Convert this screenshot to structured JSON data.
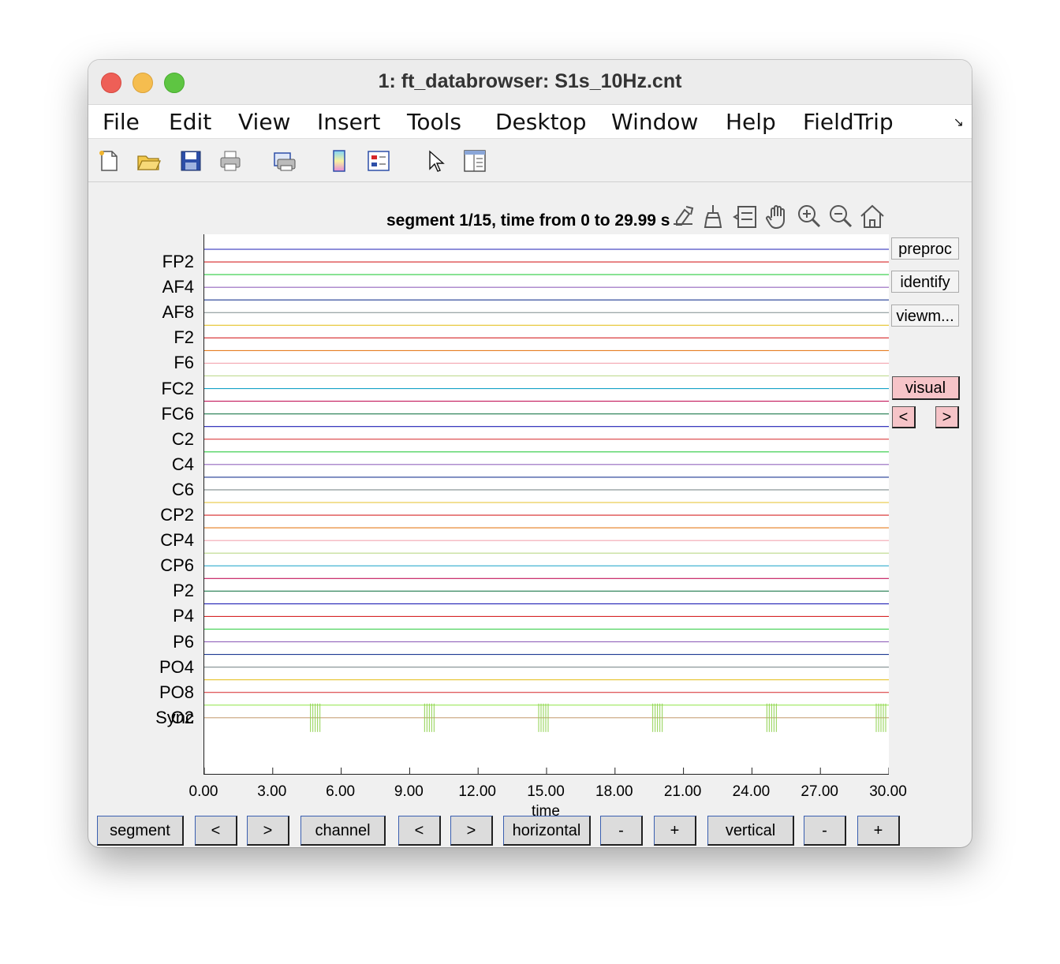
{
  "window": {
    "title": "1: ft_databrowser: S1s_10Hz.cnt"
  },
  "menu": [
    "File",
    "Edit",
    "View",
    "Insert",
    "Tools",
    "Desktop",
    "Window",
    "Help",
    "FieldTrip"
  ],
  "toolbar": [
    "new-file-icon",
    "open-folder-icon",
    "save-icon",
    "print-icon",
    "print-preview-icon",
    "colorbar-icon",
    "legend-icon",
    "pointer-icon",
    "property-editor-icon"
  ],
  "axes_toolbar": [
    "export-icon",
    "brush-icon",
    "datatip-icon",
    "pan-icon",
    "zoom-in-icon",
    "zoom-out-icon",
    "home-icon"
  ],
  "plot": {
    "title": "segment 1/15, time from 0 to 29.99 s"
  },
  "side_buttons": {
    "preproc": "preproc",
    "identify": "identify",
    "viewmode": "viewm...",
    "visual": "visual",
    "prev": "<",
    "next": ">"
  },
  "bottom_buttons": [
    {
      "id": "segment",
      "label": "segment"
    },
    {
      "id": "segment-prev",
      "label": "<"
    },
    {
      "id": "segment-next",
      "label": ">"
    },
    {
      "id": "channel",
      "label": "channel"
    },
    {
      "id": "channel-prev",
      "label": "<"
    },
    {
      "id": "channel-next",
      "label": ">"
    },
    {
      "id": "horizontal",
      "label": "horizontal"
    },
    {
      "id": "horizontal-minus",
      "label": "-"
    },
    {
      "id": "horizontal-plus",
      "label": "+"
    },
    {
      "id": "vertical",
      "label": "vertical"
    },
    {
      "id": "vertical-minus",
      "label": "-"
    },
    {
      "id": "vertical-plus",
      "label": "+"
    }
  ],
  "chart_data": {
    "type": "line",
    "title": "segment 1/15, time from 0 to 29.99 s",
    "xlabel": "time",
    "xlim": [
      0,
      30
    ],
    "xticks": [
      "0.00",
      "3.00",
      "6.00",
      "9.00",
      "12.00",
      "15.00",
      "18.00",
      "21.00",
      "24.00",
      "27.00",
      "30.00"
    ],
    "channel_labels": [
      "FP2",
      "AF4",
      "AF8",
      "F2",
      "F6",
      "FC2",
      "FC6",
      "C2",
      "C4",
      "C6",
      "CP2",
      "CP4",
      "CP6",
      "P2",
      "P4",
      "P6",
      "PO4",
      "PO8",
      "O2",
      "Sync"
    ],
    "trace_colors": [
      "#1f1fb4",
      "#d62728",
      "#2ecc40",
      "#9467bd",
      "#1f3a93",
      "#7f8c8d",
      "#e6c229",
      "#d62728",
      "#e67e22",
      "#f4a6b0",
      "#bcd88a",
      "#17a2c8",
      "#c2185b",
      "#1f7a4d",
      "#1f1fb4",
      "#d62728",
      "#2ecc40",
      "#9467bd",
      "#1f3a93",
      "#7f8c8d",
      "#e6c229",
      "#d62728",
      "#e67e22",
      "#f4a6b0",
      "#bcd88a",
      "#17a2c8",
      "#c2185b",
      "#1f7a4d",
      "#1f1fb4",
      "#d62728",
      "#2ecc40",
      "#9467bd",
      "#1f3a93",
      "#7f8c8d",
      "#e6c229",
      "#d62728",
      "#9be85a",
      "#c8a27a"
    ],
    "sync_pulses": [
      5,
      10,
      15,
      20,
      25,
      30
    ],
    "sync_color": "#8fd14f"
  }
}
